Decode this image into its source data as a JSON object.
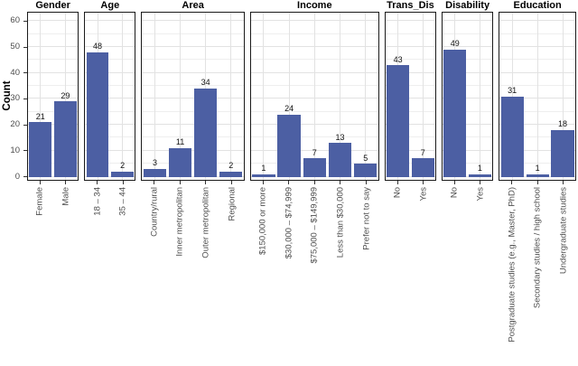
{
  "chart_data": {
    "type": "bar",
    "title": "",
    "xlabel": "",
    "ylabel": "Count",
    "ylim": [
      0,
      63
    ],
    "yticks": [
      0,
      10,
      20,
      30,
      40,
      50,
      60
    ],
    "grid": true,
    "legend": "none",
    "facets": [
      {
        "label": "Gender",
        "categories": [
          "Female",
          "Male"
        ],
        "values": [
          21,
          29
        ]
      },
      {
        "label": "Age",
        "categories": [
          "18 – 34",
          "35 – 44"
        ],
        "values": [
          48,
          2
        ]
      },
      {
        "label": "Area",
        "categories": [
          "Country/rural",
          "Inner metropolitan",
          "Outer metropolitan",
          "Regional"
        ],
        "values": [
          3,
          11,
          34,
          2
        ]
      },
      {
        "label": "Income",
        "categories": [
          "$150,000 or more",
          "$30,000 – $74,999",
          "$75,000 – $149,999",
          "Less than $30,000",
          "Prefer not to say"
        ],
        "values": [
          1,
          24,
          7,
          13,
          5
        ]
      },
      {
        "label": "Trans_Dis",
        "categories": [
          "No",
          "Yes"
        ],
        "values": [
          43,
          7
        ]
      },
      {
        "label": "Disability",
        "categories": [
          "No",
          "Yes"
        ],
        "values": [
          49,
          1
        ]
      },
      {
        "label": "Education",
        "categories": [
          "Postgraduate studies (e.g., Master, PhD)",
          "Secondary studies / high school",
          "Undergraduate studies"
        ],
        "values": [
          31,
          1,
          18
        ]
      }
    ],
    "style": {
      "bar_color": "#4c5fa3",
      "panel_border_color": "#1a1a1a",
      "grid_major_color": "#e2e2e2",
      "grid_minor_color": "#eeeeee",
      "axis_text_color": "#4d4d4d",
      "value_label_color": "#111111",
      "tick_mark_color": "#333333",
      "background": "#ffffff"
    }
  }
}
